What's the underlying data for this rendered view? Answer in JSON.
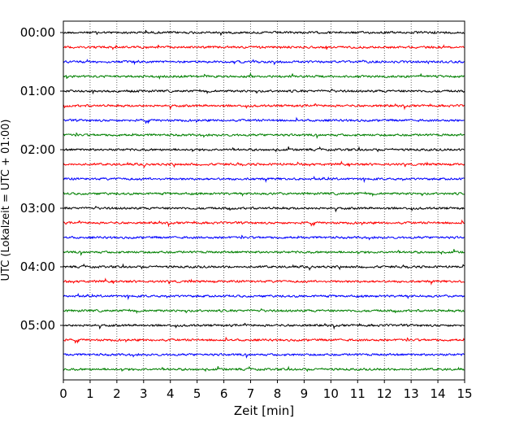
{
  "chart_data": {
    "type": "line",
    "title": "",
    "xlabel": "Zeit  [min]",
    "ylabel": "UTC (Lokalzeit = UTC + 01:00)",
    "xlim": [
      0,
      15
    ],
    "x_ticks": [
      "0",
      "1",
      "2",
      "3",
      "4",
      "5",
      "6",
      "7",
      "8",
      "9",
      "10",
      "11",
      "12",
      "13",
      "14",
      "15"
    ],
    "y_tick_labels": [
      "00:00",
      "01:00",
      "02:00",
      "03:00",
      "04:00",
      "05:00"
    ],
    "rows_per_hour": 4,
    "row_count": 24,
    "row_colors": [
      "#000000",
      "#ff0000",
      "#0000ff",
      "#008000"
    ],
    "grid": {
      "vertical": true,
      "style": "dotted"
    },
    "legend": "none"
  }
}
